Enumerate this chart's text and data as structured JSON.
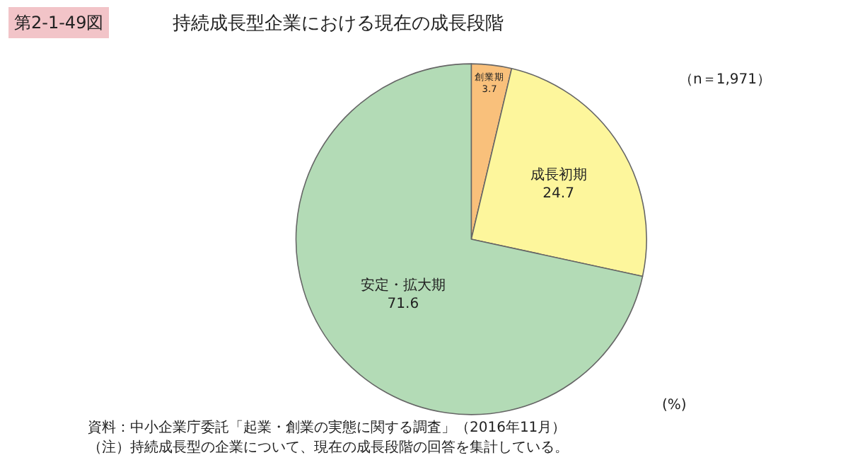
{
  "chart_data": {
    "type": "pie",
    "title": "持続成長型企業における現在の成長段階",
    "categories": [
      "創業期",
      "成長初期",
      "安定・拡大期"
    ],
    "values": [
      3.7,
      24.7,
      71.6
    ],
    "colors": [
      "#f9c07b",
      "#fdf69c",
      "#b3dbb6"
    ],
    "data_labels": true,
    "legend": false,
    "annotations": [
      "第2-1-49図",
      "（n＝1,971）",
      "(%)",
      "資料：中小企業庁委託「起業・創業の実態に関する調査」（2016年11月）",
      "（注）持続成長型の企業について、現在の成長段階の回答を集計している。"
    ]
  }
}
